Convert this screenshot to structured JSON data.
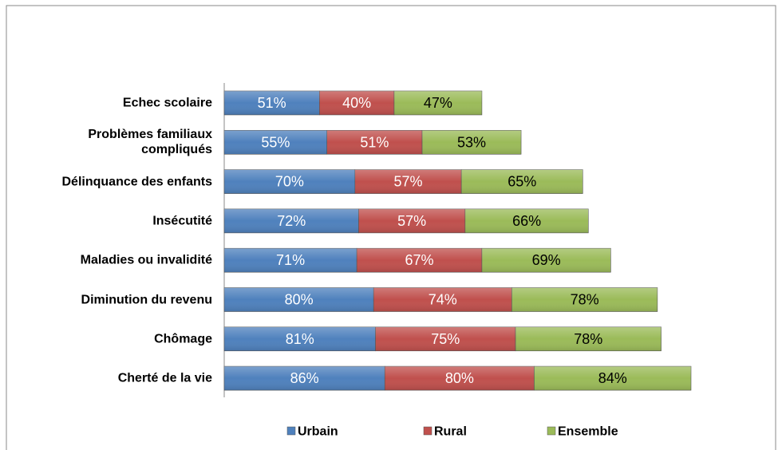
{
  "chart_data": {
    "type": "stacked-bar-horizontal",
    "categories": [
      "Echec scolaire",
      "Problèmes familiaux compliqués",
      "Délinquance des enfants",
      "Insécutité",
      "Maladies ou invalidité",
      "Diminution du revenu",
      "Chômage",
      "Cherté de la vie"
    ],
    "series": [
      {
        "name": "Urbain",
        "color": "#4f81bd",
        "values": [
          51,
          55,
          70,
          72,
          71,
          80,
          81,
          86
        ],
        "value_labels": [
          "51%",
          "55%",
          "70%",
          "72%",
          "71%",
          "80%",
          "81%",
          "86%"
        ]
      },
      {
        "name": "Rural",
        "color": "#c0504d",
        "values": [
          40,
          51,
          57,
          57,
          67,
          74,
          75,
          80
        ],
        "value_labels": [
          "40%",
          "51%",
          "57%",
          "57%",
          "67%",
          "74%",
          "75%",
          "80%"
        ]
      },
      {
        "name": "Ensemble",
        "color": "#9bbb59",
        "values": [
          47,
          53,
          65,
          66,
          69,
          78,
          78,
          84
        ],
        "value_labels": [
          "47%",
          "53%",
          "65%",
          "66%",
          "69%",
          "78%",
          "78%",
          "84%"
        ]
      }
    ],
    "legend": "bottom"
  }
}
